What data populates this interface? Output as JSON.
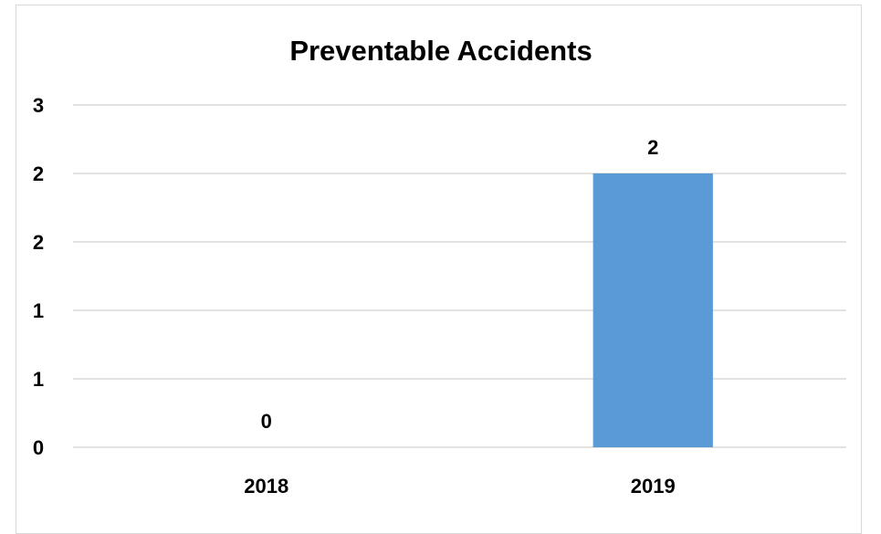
{
  "chart_data": {
    "type": "bar",
    "title": "Preventable Accidents",
    "categories": [
      "2018",
      "2019"
    ],
    "values": [
      0,
      2
    ],
    "data_labels": [
      "0",
      "2"
    ],
    "y_tick_labels": [
      "0",
      "1",
      "1",
      "2",
      "2",
      "3"
    ],
    "ylim": [
      0,
      2.5
    ],
    "grid": true,
    "legend": "none",
    "bar_color": "#5b9bd5",
    "xlabel": "",
    "ylabel": ""
  }
}
